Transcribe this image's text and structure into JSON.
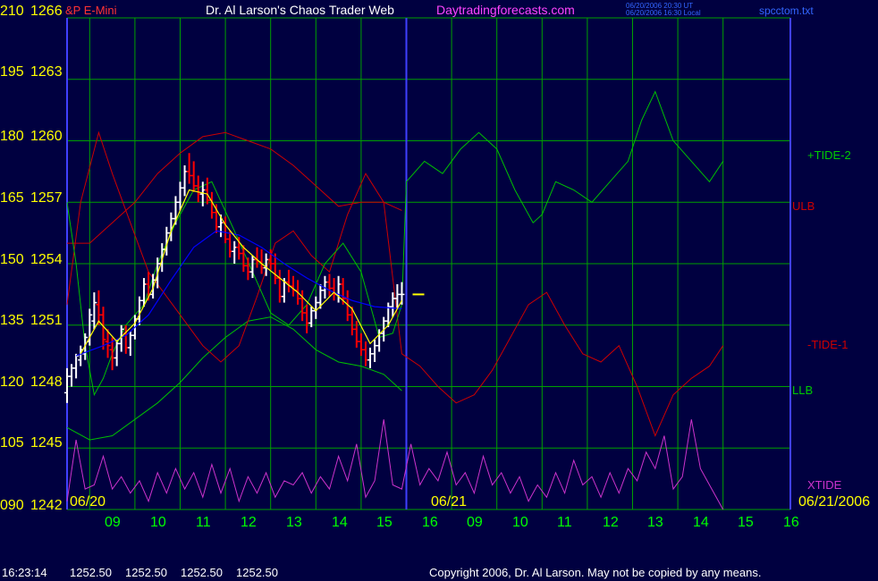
{
  "header": {
    "symbol": "&P E-Mini",
    "title": "Dr. Al Larson's Chaos Trader Web",
    "site": "Daytradingforecasts.com",
    "time_utc": "06/20/2006 20:30 UT",
    "time_local": "06/20/2006 16:30 Local",
    "file": "spcctom.txt"
  },
  "footer": {
    "timestamp": "16:23:14",
    "ohlc": [
      "1252.50",
      "1252.50",
      "1252.50",
      "1252.50"
    ],
    "copyright": "Copyright 2006, Dr. Al Larson. May not be copied by any means."
  },
  "colors": {
    "background": "#000040",
    "grid": "#00a000",
    "price_up": "#ffffff",
    "price_down": "#ff0000",
    "tide2": "#00c000",
    "tide1": "#cc0000",
    "xtide": "#cc33cc",
    "ulb": "#cc0000",
    "llb": "#00c000",
    "ma_yellow": "#ffff00",
    "ma_blue": "#0000ff",
    "divider": "#4040ff"
  },
  "chart_data": {
    "type": "line",
    "y_left_labels": [
      "210",
      "195",
      "180",
      "165",
      "150",
      "135",
      "120",
      "105",
      "090"
    ],
    "y_price_labels": [
      "1266",
      "1263",
      "1260",
      "1257",
      "1254",
      "1251",
      "1248",
      "1245",
      "1242"
    ],
    "x_labels": [
      "09",
      "10",
      "11",
      "12",
      "13",
      "14",
      "15",
      "16",
      "09",
      "10",
      "11",
      "12",
      "13",
      "14",
      "15",
      "16"
    ],
    "date_labels": [
      "06/20",
      "06/21",
      "06/21/2006"
    ],
    "series_labels": [
      "+TIDE-2",
      "ULB",
      "-TIDE-1",
      "LLB",
      "XTIDE"
    ],
    "price_ylim": [
      1242,
      1266
    ],
    "index_ylim": [
      90,
      210
    ],
    "x_range_hours": [
      8.5,
      16
    ],
    "session2_start": 16,
    "last_price": 1252.5,
    "price_bars": [
      [
        8.5,
        1247.7,
        1248.9,
        1247.2,
        1248.5
      ],
      [
        8.6,
        1248.5,
        1249.1,
        1248.0,
        1248.9
      ],
      [
        8.7,
        1248.9,
        1249.6,
        1248.4,
        1249.5
      ],
      [
        8.8,
        1249.3,
        1250.0,
        1249.0,
        1249.8
      ],
      [
        8.9,
        1249.6,
        1250.6,
        1249.3,
        1250.4
      ],
      [
        9.0,
        1250.2,
        1251.8,
        1250.0,
        1251.5
      ],
      [
        9.1,
        1251.2,
        1252.6,
        1250.8,
        1252.1
      ],
      [
        9.2,
        1252.0,
        1252.7,
        1251.0,
        1251.5
      ],
      [
        9.3,
        1251.5,
        1251.9,
        1249.8,
        1250.3
      ],
      [
        9.4,
        1250.2,
        1250.8,
        1249.4,
        1250.0
      ],
      [
        9.5,
        1249.8,
        1250.4,
        1248.8,
        1249.4
      ],
      [
        9.6,
        1249.4,
        1250.3,
        1249.0,
        1250.1
      ],
      [
        9.7,
        1250.1,
        1251.0,
        1249.7,
        1250.8
      ],
      [
        9.8,
        1250.6,
        1251.0,
        1249.6,
        1249.9
      ],
      [
        9.9,
        1249.9,
        1250.7,
        1249.5,
        1250.5
      ],
      [
        10.0,
        1250.5,
        1251.5,
        1250.3,
        1251.3
      ],
      [
        10.1,
        1251.3,
        1252.4,
        1251.0,
        1252.2
      ],
      [
        10.2,
        1252.2,
        1253.3,
        1251.9,
        1253.0
      ],
      [
        10.3,
        1253.0,
        1253.6,
        1252.2,
        1252.5
      ],
      [
        10.4,
        1252.5,
        1253.5,
        1252.3,
        1253.2
      ],
      [
        10.5,
        1253.2,
        1254.3,
        1252.8,
        1254.0
      ],
      [
        10.6,
        1254.0,
        1255.0,
        1253.6,
        1254.7
      ],
      [
        10.7,
        1254.7,
        1255.8,
        1254.4,
        1255.5
      ],
      [
        10.8,
        1255.5,
        1256.5,
        1255.1,
        1256.2
      ],
      [
        10.9,
        1256.2,
        1257.3,
        1255.9,
        1257.0
      ],
      [
        11.0,
        1257.0,
        1258.0,
        1256.6,
        1257.7
      ],
      [
        11.1,
        1257.7,
        1258.8,
        1257.3,
        1258.5
      ],
      [
        11.2,
        1258.5,
        1259.4,
        1257.9,
        1258.3
      ],
      [
        11.3,
        1258.3,
        1259.0,
        1257.5,
        1257.8
      ],
      [
        11.4,
        1257.8,
        1258.3,
        1257.0,
        1257.4
      ],
      [
        11.5,
        1257.4,
        1258.0,
        1256.8,
        1257.6
      ],
      [
        11.6,
        1257.6,
        1258.2,
        1256.9,
        1257.1
      ],
      [
        11.7,
        1257.1,
        1257.5,
        1256.2,
        1256.5
      ],
      [
        11.8,
        1256.5,
        1256.9,
        1255.5,
        1255.8
      ],
      [
        11.9,
        1255.8,
        1256.4,
        1255.3,
        1256.0
      ],
      [
        12.0,
        1256.0,
        1256.3,
        1255.0,
        1255.2
      ],
      [
        12.1,
        1255.2,
        1255.6,
        1254.3,
        1254.6
      ],
      [
        12.2,
        1254.6,
        1255.1,
        1254.0,
        1254.8
      ],
      [
        12.3,
        1254.8,
        1255.3,
        1254.2,
        1254.5
      ],
      [
        12.4,
        1254.5,
        1254.9,
        1253.6,
        1253.9
      ],
      [
        12.5,
        1253.9,
        1254.3,
        1253.2,
        1253.6
      ],
      [
        12.6,
        1253.6,
        1254.4,
        1253.3,
        1254.2
      ],
      [
        12.7,
        1254.2,
        1254.8,
        1253.8,
        1254.1
      ],
      [
        12.8,
        1254.1,
        1254.7,
        1253.5,
        1253.8
      ],
      [
        12.9,
        1253.8,
        1254.5,
        1253.4,
        1254.2
      ],
      [
        13.0,
        1254.2,
        1254.7,
        1253.7,
        1254.0
      ],
      [
        13.1,
        1254.0,
        1254.5,
        1253.0,
        1253.3
      ],
      [
        13.2,
        1253.3,
        1253.7,
        1252.1,
        1252.4
      ],
      [
        13.3,
        1252.4,
        1253.3,
        1252.1,
        1253.1
      ],
      [
        13.4,
        1253.1,
        1253.7,
        1252.6,
        1252.9
      ],
      [
        13.5,
        1252.9,
        1253.4,
        1252.4,
        1252.7
      ],
      [
        13.6,
        1252.7,
        1253.2,
        1252.0,
        1252.3
      ],
      [
        13.7,
        1252.3,
        1252.7,
        1251.2,
        1251.6
      ],
      [
        13.8,
        1251.6,
        1252.0,
        1250.6,
        1251.1
      ],
      [
        13.9,
        1251.1,
        1251.9,
        1250.9,
        1251.7
      ],
      [
        14.0,
        1251.7,
        1252.4,
        1251.3,
        1252.1
      ],
      [
        14.1,
        1252.1,
        1253.0,
        1251.8,
        1252.7
      ],
      [
        14.2,
        1252.7,
        1253.4,
        1252.3,
        1253.1
      ],
      [
        14.3,
        1253.1,
        1253.5,
        1252.4,
        1252.8
      ],
      [
        14.4,
        1252.8,
        1253.3,
        1252.2,
        1252.5
      ],
      [
        14.5,
        1252.5,
        1253.4,
        1252.1,
        1253.0
      ],
      [
        14.6,
        1253.0,
        1253.3,
        1252.0,
        1252.3
      ],
      [
        14.7,
        1252.3,
        1252.7,
        1251.2,
        1251.5
      ],
      [
        14.8,
        1251.5,
        1251.9,
        1250.5,
        1250.8
      ],
      [
        14.9,
        1250.8,
        1251.2,
        1249.9,
        1250.2
      ],
      [
        15.0,
        1250.2,
        1250.6,
        1249.5,
        1249.8
      ],
      [
        15.1,
        1249.8,
        1250.2,
        1249.0,
        1249.3
      ],
      [
        15.2,
        1249.3,
        1249.9,
        1248.9,
        1249.6
      ],
      [
        15.3,
        1249.6,
        1250.3,
        1249.2,
        1250.0
      ],
      [
        15.4,
        1250.0,
        1250.8,
        1249.7,
        1250.6
      ],
      [
        15.5,
        1250.6,
        1251.4,
        1250.2,
        1251.2
      ],
      [
        15.6,
        1251.2,
        1252.1,
        1250.9,
        1251.9
      ],
      [
        15.7,
        1251.9,
        1252.6,
        1251.4,
        1252.3
      ],
      [
        15.8,
        1252.3,
        1253.0,
        1251.8,
        1252.5
      ],
      [
        15.9,
        1252.5,
        1253.1,
        1252.0,
        1252.5
      ]
    ],
    "ma_yellow": [
      [
        8.8,
        1249.6
      ],
      [
        9.2,
        1251.2
      ],
      [
        9.6,
        1250.2
      ],
      [
        10.0,
        1251.1
      ],
      [
        10.4,
        1252.8
      ],
      [
        10.8,
        1255.6
      ],
      [
        11.2,
        1257.6
      ],
      [
        11.6,
        1257.4
      ],
      [
        12.0,
        1255.9
      ],
      [
        12.4,
        1254.8
      ],
      [
        12.8,
        1254.0
      ],
      [
        13.2,
        1253.3
      ],
      [
        13.6,
        1252.6
      ],
      [
        14.0,
        1251.7
      ],
      [
        14.4,
        1252.6
      ],
      [
        14.8,
        1251.8
      ],
      [
        15.2,
        1250.1
      ],
      [
        15.6,
        1251.0
      ],
      [
        15.9,
        1252.2
      ]
    ],
    "ma_blue": [
      [
        8.7,
        1249.5
      ],
      [
        9.3,
        1250.0
      ],
      [
        9.8,
        1250.5
      ],
      [
        10.3,
        1251.5
      ],
      [
        10.8,
        1253.2
      ],
      [
        11.3,
        1254.8
      ],
      [
        11.8,
        1255.6
      ],
      [
        12.3,
        1255.4
      ],
      [
        12.8,
        1254.8
      ],
      [
        13.3,
        1254.0
      ],
      [
        13.8,
        1253.3
      ],
      [
        14.3,
        1252.7
      ],
      [
        14.8,
        1252.2
      ],
      [
        15.3,
        1251.9
      ],
      [
        15.9,
        1251.8
      ]
    ],
    "tide2": [
      [
        8.5,
        165
      ],
      [
        8.7,
        150
      ],
      [
        8.9,
        130
      ],
      [
        9.1,
        118
      ],
      [
        9.3,
        122
      ],
      [
        9.5,
        128
      ],
      [
        9.8,
        135
      ],
      [
        10.2,
        140
      ],
      [
        10.5,
        150
      ],
      [
        10.9,
        160
      ],
      [
        11.3,
        168
      ],
      [
        11.7,
        170
      ],
      [
        12.2,
        158
      ],
      [
        12.6,
        148
      ],
      [
        13.0,
        138
      ],
      [
        13.4,
        135
      ],
      [
        13.8,
        140
      ],
      [
        14.2,
        150
      ],
      [
        14.6,
        155
      ],
      [
        15.0,
        148
      ],
      [
        15.4,
        132
      ],
      [
        15.7,
        133
      ],
      [
        15.9,
        140
      ],
      [
        16.0,
        170
      ],
      [
        16.4,
        175
      ],
      [
        16.8,
        172
      ],
      [
        17.2,
        178
      ],
      [
        17.6,
        182
      ],
      [
        18.0,
        178
      ],
      [
        18.4,
        168
      ],
      [
        18.8,
        160
      ],
      [
        19.0,
        162
      ],
      [
        19.3,
        170
      ],
      [
        19.7,
        168
      ],
      [
        20.1,
        165
      ],
      [
        20.5,
        170
      ],
      [
        20.9,
        175
      ],
      [
        21.2,
        185
      ],
      [
        21.5,
        192
      ],
      [
        21.9,
        180
      ],
      [
        22.3,
        175
      ],
      [
        22.7,
        170
      ],
      [
        23.0,
        175
      ]
    ],
    "ulb": [
      [
        8.5,
        155
      ],
      [
        9.0,
        155
      ],
      [
        9.5,
        160
      ],
      [
        10.0,
        165
      ],
      [
        10.5,
        172
      ],
      [
        11.0,
        177
      ],
      [
        11.5,
        181
      ],
      [
        12.0,
        182
      ],
      [
        12.5,
        180
      ],
      [
        13.0,
        178
      ],
      [
        13.5,
        174
      ],
      [
        14.0,
        169
      ],
      [
        14.5,
        164
      ],
      [
        15.0,
        165
      ],
      [
        15.5,
        165
      ],
      [
        15.9,
        163
      ]
    ],
    "llb": [
      [
        8.5,
        110
      ],
      [
        9.0,
        107
      ],
      [
        9.5,
        108
      ],
      [
        10.0,
        112
      ],
      [
        10.5,
        116
      ],
      [
        11.0,
        121
      ],
      [
        11.5,
        127
      ],
      [
        12.0,
        132
      ],
      [
        12.5,
        136
      ],
      [
        13.0,
        137
      ],
      [
        13.5,
        134
      ],
      [
        14.0,
        129
      ],
      [
        14.5,
        126
      ],
      [
        15.0,
        125
      ],
      [
        15.5,
        123
      ],
      [
        15.9,
        119
      ]
    ],
    "tide1": [
      [
        8.5,
        140
      ],
      [
        8.8,
        165
      ],
      [
        9.2,
        182
      ],
      [
        9.5,
        172
      ],
      [
        9.9,
        160
      ],
      [
        10.3,
        148
      ],
      [
        10.7,
        142
      ],
      [
        11.1,
        136
      ],
      [
        11.5,
        130
      ],
      [
        11.9,
        126
      ],
      [
        12.3,
        130
      ],
      [
        12.7,
        142
      ],
      [
        13.1,
        155
      ],
      [
        13.5,
        158
      ],
      [
        13.9,
        152
      ],
      [
        14.3,
        148
      ],
      [
        14.7,
        162
      ],
      [
        15.1,
        172
      ],
      [
        15.5,
        165
      ],
      [
        15.9,
        128
      ],
      [
        16.3,
        125
      ],
      [
        16.7,
        120
      ],
      [
        17.1,
        116
      ],
      [
        17.5,
        118
      ],
      [
        17.9,
        124
      ],
      [
        18.3,
        132
      ],
      [
        18.7,
        140
      ],
      [
        19.1,
        143
      ],
      [
        19.5,
        135
      ],
      [
        19.9,
        128
      ],
      [
        20.3,
        126
      ],
      [
        20.7,
        130
      ],
      [
        21.1,
        120
      ],
      [
        21.5,
        108
      ],
      [
        21.9,
        118
      ],
      [
        22.3,
        122
      ],
      [
        22.7,
        125
      ],
      [
        23.0,
        130
      ]
    ],
    "xtide": [
      [
        8.5,
        92
      ],
      [
        8.7,
        107
      ],
      [
        8.9,
        95
      ],
      [
        9.1,
        96
      ],
      [
        9.3,
        103
      ],
      [
        9.5,
        95
      ],
      [
        9.7,
        98
      ],
      [
        9.9,
        94
      ],
      [
        10.1,
        97
      ],
      [
        10.3,
        92
      ],
      [
        10.5,
        99
      ],
      [
        10.7,
        94
      ],
      [
        10.9,
        100
      ],
      [
        11.1,
        95
      ],
      [
        11.3,
        99
      ],
      [
        11.5,
        93
      ],
      [
        11.7,
        101
      ],
      [
        11.9,
        94
      ],
      [
        12.1,
        100
      ],
      [
        12.3,
        92
      ],
      [
        12.5,
        98
      ],
      [
        12.7,
        94
      ],
      [
        12.9,
        99
      ],
      [
        13.1,
        93
      ],
      [
        13.3,
        97
      ],
      [
        13.5,
        96
      ],
      [
        13.7,
        99
      ],
      [
        13.9,
        94
      ],
      [
        14.1,
        98
      ],
      [
        14.3,
        95
      ],
      [
        14.5,
        103
      ],
      [
        14.7,
        97
      ],
      [
        14.9,
        106
      ],
      [
        15.1,
        93
      ],
      [
        15.3,
        97
      ],
      [
        15.5,
        112
      ],
      [
        15.7,
        96
      ],
      [
        15.9,
        95
      ],
      [
        16.1,
        106
      ],
      [
        16.3,
        96
      ],
      [
        16.5,
        100
      ],
      [
        16.7,
        97
      ],
      [
        16.9,
        104
      ],
      [
        17.1,
        96
      ],
      [
        17.3,
        99
      ],
      [
        17.5,
        94
      ],
      [
        17.7,
        103
      ],
      [
        17.9,
        96
      ],
      [
        18.1,
        99
      ],
      [
        18.3,
        94
      ],
      [
        18.5,
        98
      ],
      [
        18.7,
        92
      ],
      [
        18.9,
        96
      ],
      [
        19.1,
        93
      ],
      [
        19.3,
        99
      ],
      [
        19.5,
        94
      ],
      [
        19.7,
        102
      ],
      [
        19.9,
        96
      ],
      [
        20.1,
        98
      ],
      [
        20.3,
        93
      ],
      [
        20.5,
        99
      ],
      [
        20.7,
        94
      ],
      [
        20.9,
        100
      ],
      [
        21.1,
        97
      ],
      [
        21.3,
        104
      ],
      [
        21.5,
        100
      ],
      [
        21.7,
        108
      ],
      [
        21.9,
        95
      ],
      [
        22.1,
        98
      ],
      [
        22.3,
        112
      ],
      [
        22.5,
        100
      ],
      [
        22.7,
        96
      ],
      [
        22.9,
        92
      ],
      [
        23.0,
        90
      ]
    ]
  }
}
